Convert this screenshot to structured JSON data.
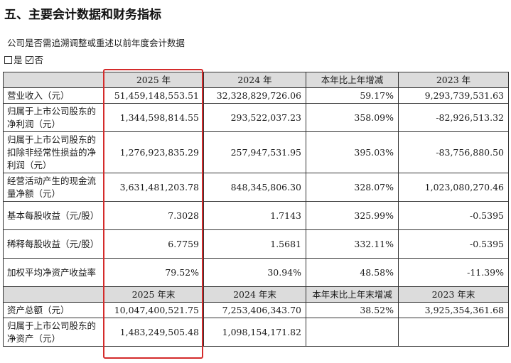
{
  "heading": "五、主要会计数据和财务指标",
  "subtitle": "公司是否需追溯调整或重述以前年度会计数据",
  "restate_options": [
    {
      "label": "是",
      "checked": false
    },
    {
      "label": "否",
      "checked": true
    }
  ],
  "table": {
    "header1": [
      "",
      "2025 年",
      "2024 年",
      "本年比上年增减",
      "2023 年"
    ],
    "rows1": [
      {
        "label": "营业收入（元）",
        "values": [
          "51,459,148,553.51",
          "32,328,829,726.06",
          "59.17%",
          "9,293,739,531.63"
        ]
      },
      {
        "label": "归属于上市公司股东的净利润（元）",
        "values": [
          "1,344,598,814.55",
          "293,522,037.23",
          "358.09%",
          "-82,926,513.32"
        ]
      },
      {
        "label": "归属于上市公司股东的扣除非经常性损益的净利润（元）",
        "values": [
          "1,276,923,835.29",
          "257,947,531.95",
          "395.03%",
          "-83,756,880.50"
        ]
      },
      {
        "label": "经营活动产生的现金流量净额（元）",
        "values": [
          "3,631,481,203.78",
          "848,345,806.30",
          "328.07%",
          "1,023,080,270.46"
        ]
      },
      {
        "label": "基本每股收益（元/股）",
        "values": [
          "7.3028",
          "1.7143",
          "325.99%",
          "-0.5395"
        ]
      },
      {
        "label": "稀释每股收益（元/股）",
        "values": [
          "6.7759",
          "1.5681",
          "332.11%",
          "-0.5395"
        ]
      },
      {
        "label": "加权平均净资产收益率",
        "values": [
          "79.52%",
          "30.94%",
          "48.58%",
          "-11.39%"
        ]
      }
    ],
    "header2": [
      "",
      "2025 年末",
      "2024 年末",
      "本年末比上年末增减",
      "2023 年末"
    ],
    "rows2": [
      {
        "label": "资产总额（元）",
        "values": [
          "10,047,400,521.75",
          "7,253,406,343.70",
          "38.52%",
          "3,925,354,361.68"
        ]
      },
      {
        "label": "归属于上市公司股东的净资产（元）",
        "values": [
          "1,483,249,505.48",
          "1,098,154,171.82",
          "",
          ""
        ]
      }
    ]
  },
  "highlight_color": "#d42b2b"
}
